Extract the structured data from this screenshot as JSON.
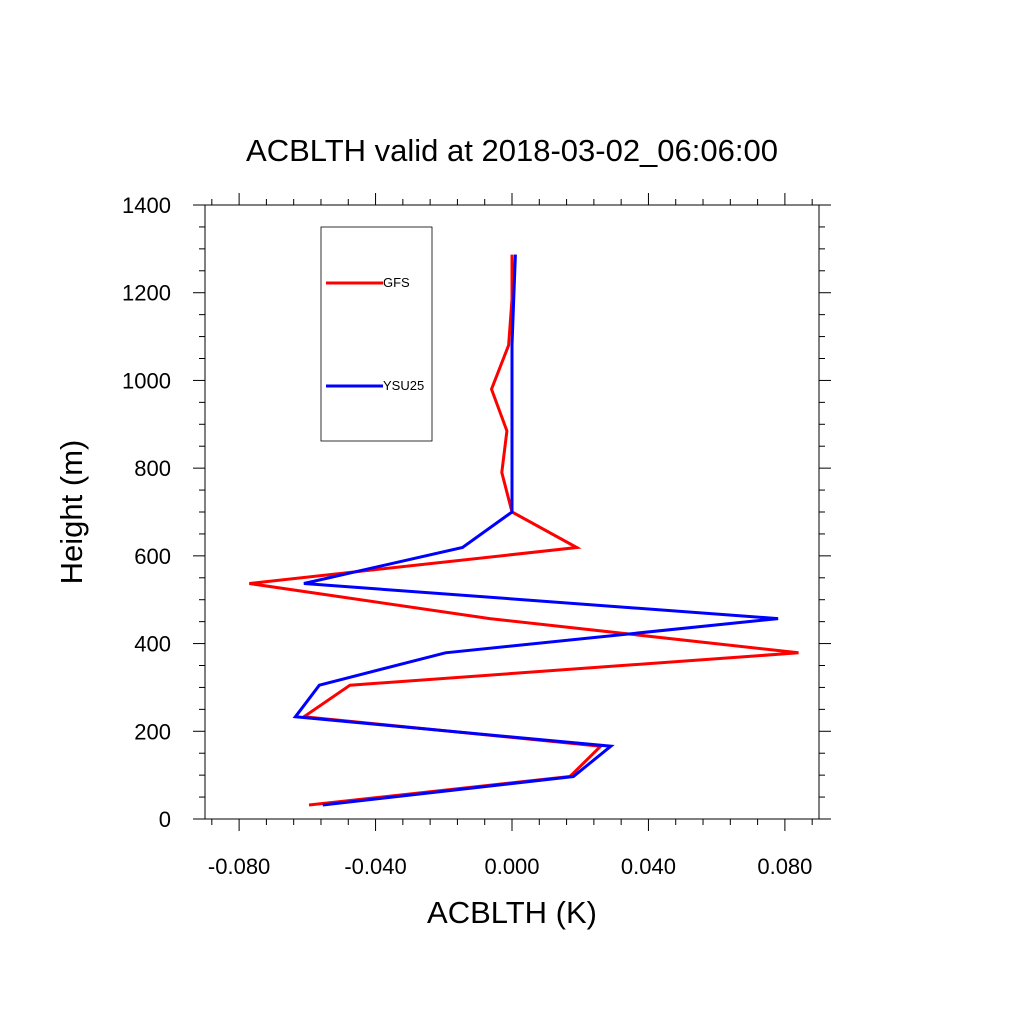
{
  "chart_data": {
    "type": "line",
    "title": "ACBLTH valid at 2018-03-02_06:06:00",
    "xlabel": "ACBLTH (K)",
    "ylabel": "Height (m)",
    "xlim": [
      -0.09,
      0.09
    ],
    "ylim": [
      0,
      1400
    ],
    "x_ticks": [
      -0.08,
      -0.04,
      0.0,
      0.04,
      0.08
    ],
    "x_tick_labels": [
      "-0.080",
      "-0.040",
      "0.000",
      "0.040",
      "0.080"
    ],
    "y_ticks": [
      0,
      200,
      400,
      600,
      800,
      1000,
      1200,
      1400
    ],
    "y_tick_labels": [
      "0",
      "200",
      "400",
      "600",
      "800",
      "1000",
      "1200",
      "1400"
    ],
    "grid": false,
    "legend_position": "top-left",
    "series": [
      {
        "name": "GFS",
        "color": "#ff0000",
        "points": [
          {
            "x": -0.0595,
            "y": 32
          },
          {
            "x": 0.017,
            "y": 97
          },
          {
            "x": 0.026,
            "y": 166
          },
          {
            "x": -0.061,
            "y": 233
          },
          {
            "x": -0.0475,
            "y": 305
          },
          {
            "x": 0.084,
            "y": 379
          },
          {
            "x": -0.0065,
            "y": 457
          },
          {
            "x": -0.077,
            "y": 537
          },
          {
            "x": 0.019,
            "y": 619
          },
          {
            "x": 0.0,
            "y": 700
          },
          {
            "x": -0.003,
            "y": 790
          },
          {
            "x": -0.0015,
            "y": 885
          },
          {
            "x": -0.006,
            "y": 980
          },
          {
            "x": -0.001,
            "y": 1080
          },
          {
            "x": 0.0,
            "y": 1185
          },
          {
            "x": 0.0,
            "y": 1287
          }
        ]
      },
      {
        "name": "YSU25",
        "color": "#0000ff",
        "points": [
          {
            "x": -0.0555,
            "y": 32
          },
          {
            "x": 0.018,
            "y": 97
          },
          {
            "x": 0.029,
            "y": 166
          },
          {
            "x": -0.0635,
            "y": 233
          },
          {
            "x": -0.0565,
            "y": 305
          },
          {
            "x": -0.0195,
            "y": 379
          },
          {
            "x": 0.078,
            "y": 457
          },
          {
            "x": -0.061,
            "y": 537
          },
          {
            "x": -0.0145,
            "y": 619
          },
          {
            "x": 0.0,
            "y": 700
          },
          {
            "x": 0.0,
            "y": 790
          },
          {
            "x": 0.0,
            "y": 885
          },
          {
            "x": 0.0,
            "y": 980
          },
          {
            "x": 0.0,
            "y": 1080
          },
          {
            "x": 0.0005,
            "y": 1185
          },
          {
            "x": 0.001,
            "y": 1287
          }
        ]
      }
    ]
  }
}
